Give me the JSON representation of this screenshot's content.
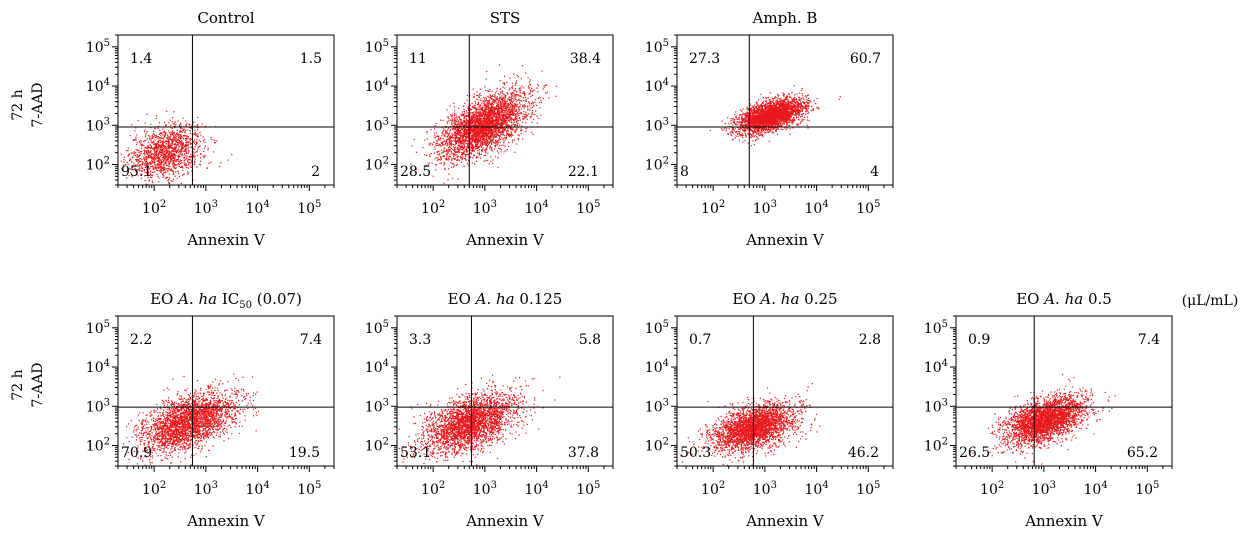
{
  "figure": {
    "unit_label": "(μL/mL)",
    "rows": [
      {
        "time": "72 h",
        "ylabel": "7-AAD"
      },
      {
        "time": "72 h",
        "ylabel": "7-AAD"
      }
    ]
  },
  "chart_data": [
    {
      "type": "scatter",
      "title": "Control",
      "xlabel": "Annexin V",
      "ylabel": "7-AAD",
      "xscale": "log",
      "yscale": "log",
      "xlim": [
        20,
        300000
      ],
      "ylim": [
        30,
        200000
      ],
      "xticks": [
        100,
        1000,
        10000,
        100000
      ],
      "yticks": [
        100,
        1000,
        10000,
        100000
      ],
      "gate": {
        "x": 550,
        "y": 900
      },
      "quadrants": {
        "upper_left": "1.4",
        "upper_right": "1.5",
        "lower_left": "95.1",
        "lower_right": "2"
      },
      "cloud": {
        "center": [
          170,
          220
        ],
        "spread": [
          0.35,
          0.34
        ],
        "count": 1400,
        "rho": 0.3
      }
    },
    {
      "type": "scatter",
      "title": "STS",
      "xlabel": "Annexin V",
      "ylabel": "7-AAD",
      "xscale": "log",
      "yscale": "log",
      "xlim": [
        20,
        300000
      ],
      "ylim": [
        30,
        200000
      ],
      "xticks": [
        100,
        1000,
        10000,
        100000
      ],
      "yticks": [
        100,
        1000,
        10000,
        100000
      ],
      "gate": {
        "x": 500,
        "y": 900
      },
      "quadrants": {
        "upper_left": "11",
        "upper_right": "38.4",
        "lower_left": "28.5",
        "lower_right": "22.1"
      },
      "cloud": {
        "center": [
          900,
          1000
        ],
        "spread": [
          0.42,
          0.42
        ],
        "count": 3400,
        "rho": 0.6
      }
    },
    {
      "type": "scatter",
      "title": "Amph. B",
      "xlabel": "Annexin V",
      "ylabel": "7-AAD",
      "xscale": "log",
      "yscale": "log",
      "xlim": [
        20,
        300000
      ],
      "ylim": [
        30,
        200000
      ],
      "xticks": [
        100,
        1000,
        10000,
        100000
      ],
      "yticks": [
        100,
        1000,
        10000,
        100000
      ],
      "gate": {
        "x": 500,
        "y": 900
      },
      "quadrants": {
        "upper_left": "27.3",
        "upper_right": "60.7",
        "lower_left": "8",
        "lower_right": "4"
      },
      "cloud": {
        "center": [
          1300,
          1800
        ],
        "spread": [
          0.32,
          0.22
        ],
        "count": 3000,
        "rho": 0.55
      }
    },
    {
      "type": "scatter",
      "title": "EO A. ha IC50 (0.07)",
      "xlabel": "Annexin V",
      "ylabel": "7-AAD",
      "xscale": "log",
      "yscale": "log",
      "xlim": [
        20,
        300000
      ],
      "ylim": [
        30,
        200000
      ],
      "xticks": [
        100,
        1000,
        10000,
        100000
      ],
      "yticks": [
        100,
        1000,
        10000,
        100000
      ],
      "gate": {
        "x": 550,
        "y": 950
      },
      "quadrants": {
        "upper_left": "2.2",
        "upper_right": "7.4",
        "lower_left": "70.9",
        "lower_right": "19.5"
      },
      "cloud": {
        "center": [
          450,
          400
        ],
        "spread": [
          0.45,
          0.38
        ],
        "count": 2800,
        "rho": 0.5
      }
    },
    {
      "type": "scatter",
      "title": "EO A. ha 0.125",
      "xlabel": "Annexin V",
      "ylabel": "7-AAD",
      "xscale": "log",
      "yscale": "log",
      "xlim": [
        20,
        300000
      ],
      "ylim": [
        30,
        200000
      ],
      "xticks": [
        100,
        1000,
        10000,
        100000
      ],
      "yticks": [
        100,
        1000,
        10000,
        100000
      ],
      "gate": {
        "x": 550,
        "y": 950
      },
      "quadrants": {
        "upper_left": "3.3",
        "upper_right": "5.8",
        "lower_left": "53.1",
        "lower_right": "37.8"
      },
      "cloud": {
        "center": [
          500,
          380
        ],
        "spread": [
          0.45,
          0.38
        ],
        "count": 2800,
        "rho": 0.5
      }
    },
    {
      "type": "scatter",
      "title": "EO A. ha 0.25",
      "xlabel": "Annexin V",
      "ylabel": "7-AAD",
      "xscale": "log",
      "yscale": "log",
      "xlim": [
        20,
        300000
      ],
      "ylim": [
        30,
        200000
      ],
      "xticks": [
        100,
        1000,
        10000,
        100000
      ],
      "yticks": [
        100,
        1000,
        10000,
        100000
      ],
      "gate": {
        "x": 600,
        "y": 950
      },
      "quadrants": {
        "upper_left": "0.7",
        "upper_right": "2.8",
        "lower_left": "50.3",
        "lower_right": "46.2"
      },
      "cloud": {
        "center": [
          600,
          300
        ],
        "spread": [
          0.4,
          0.3
        ],
        "count": 2800,
        "rho": 0.45
      }
    },
    {
      "type": "scatter",
      "title": "EO A. ha 0.5",
      "xlabel": "Annexin V",
      "ylabel": "7-AAD",
      "xscale": "log",
      "yscale": "log",
      "xlim": [
        20,
        300000
      ],
      "ylim": [
        30,
        200000
      ],
      "xticks": [
        100,
        1000,
        10000,
        100000
      ],
      "yticks": [
        100,
        1000,
        10000,
        100000
      ],
      "gate": {
        "x": 650,
        "y": 950
      },
      "quadrants": {
        "upper_left": "0.9",
        "upper_right": "7.4",
        "lower_left": "26.5",
        "lower_right": "65.2"
      },
      "cloud": {
        "center": [
          1000,
          450
        ],
        "spread": [
          0.38,
          0.3
        ],
        "count": 3000,
        "rho": 0.5
      }
    }
  ],
  "colors": {
    "dots": "#e8181c",
    "axis": "#000000"
  }
}
